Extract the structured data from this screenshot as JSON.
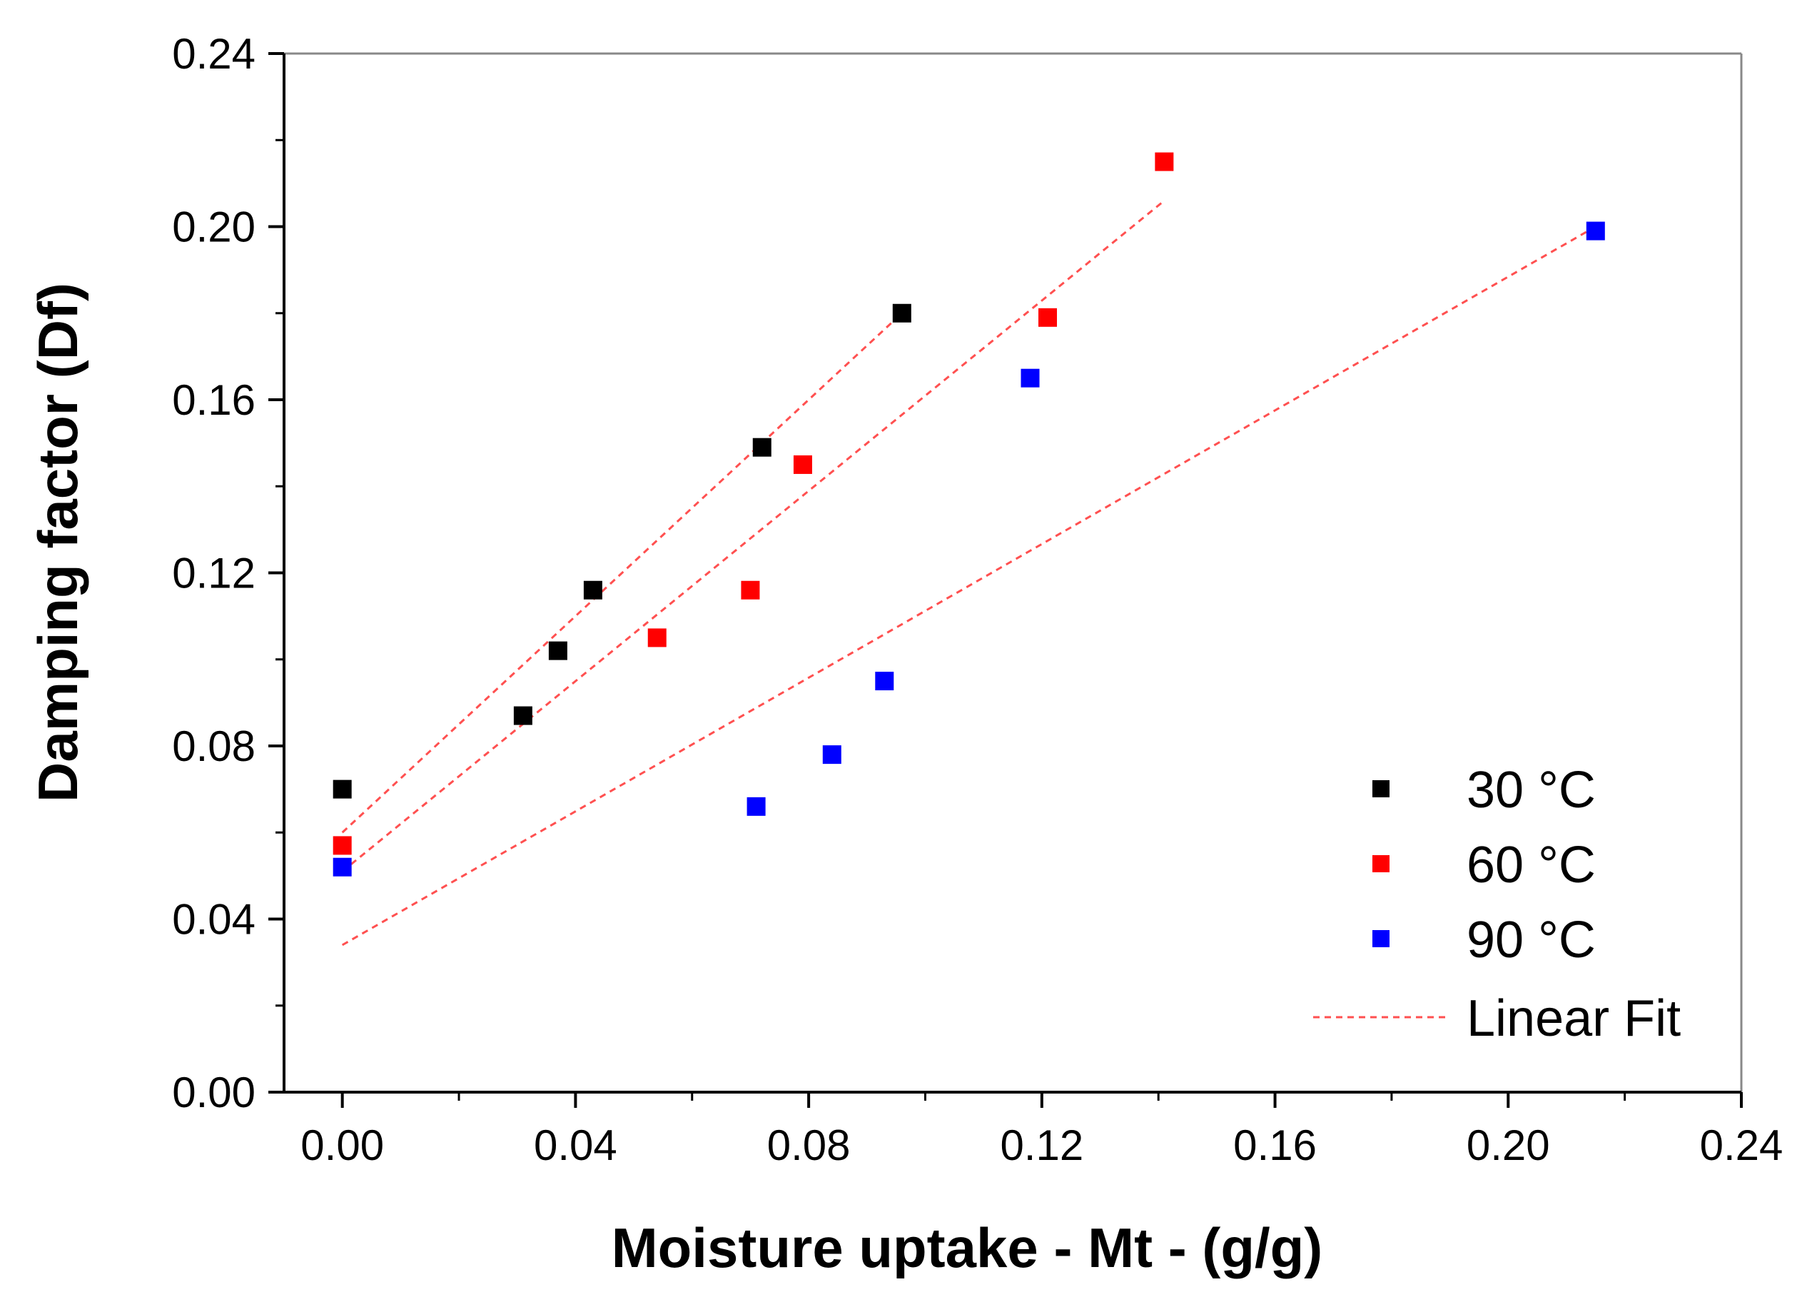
{
  "chart_data": {
    "type": "scatter",
    "title": "",
    "xlabel": "Moisture uptake - Mt - (g/g)",
    "ylabel": "Damping factor (Df)",
    "xlim": [
      -0.01,
      0.24
    ],
    "ylim": [
      0.0,
      0.24
    ],
    "x_ticks": [
      0.0,
      0.04,
      0.08,
      0.12,
      0.16,
      0.2,
      0.24
    ],
    "x_tick_labels": [
      "0.00",
      "0.04",
      "0.08",
      "0.12",
      "0.16",
      "0.20",
      "0.24"
    ],
    "y_ticks": [
      0.0,
      0.04,
      0.08,
      0.12,
      0.16,
      0.2,
      0.24
    ],
    "y_tick_labels": [
      "0.00",
      "0.04",
      "0.08",
      "0.12",
      "0.16",
      "0.20",
      "0.24"
    ],
    "grid": false,
    "legend_position": "bottom-right",
    "series": [
      {
        "name": "30 °C",
        "color": "#000000",
        "x": [
          0.0,
          0.031,
          0.037,
          0.043,
          0.072,
          0.096
        ],
        "y": [
          0.07,
          0.087,
          0.102,
          0.116,
          0.149,
          0.18
        ],
        "fit": {
          "x": [
            0.0,
            0.096
          ],
          "y": [
            0.06,
            0.18
          ]
        }
      },
      {
        "name": "60 °C",
        "color": "#ff0000",
        "x": [
          0.0,
          0.054,
          0.07,
          0.079,
          0.121,
          0.141
        ],
        "y": [
          0.057,
          0.105,
          0.116,
          0.145,
          0.179,
          0.215
        ],
        "fit": {
          "x": [
            0.0,
            0.141
          ],
          "y": [
            0.051,
            0.206
          ]
        }
      },
      {
        "name": "90 °C",
        "color": "#0000ff",
        "x": [
          0.0,
          0.071,
          0.084,
          0.093,
          0.118,
          0.215
        ],
        "y": [
          0.052,
          0.066,
          0.078,
          0.095,
          0.165,
          0.199
        ],
        "fit": {
          "x": [
            0.0,
            0.215
          ],
          "y": [
            0.034,
            0.2
          ]
        }
      }
    ],
    "fit_legend_label": "Linear Fit",
    "fit_color": "#ff5050"
  }
}
